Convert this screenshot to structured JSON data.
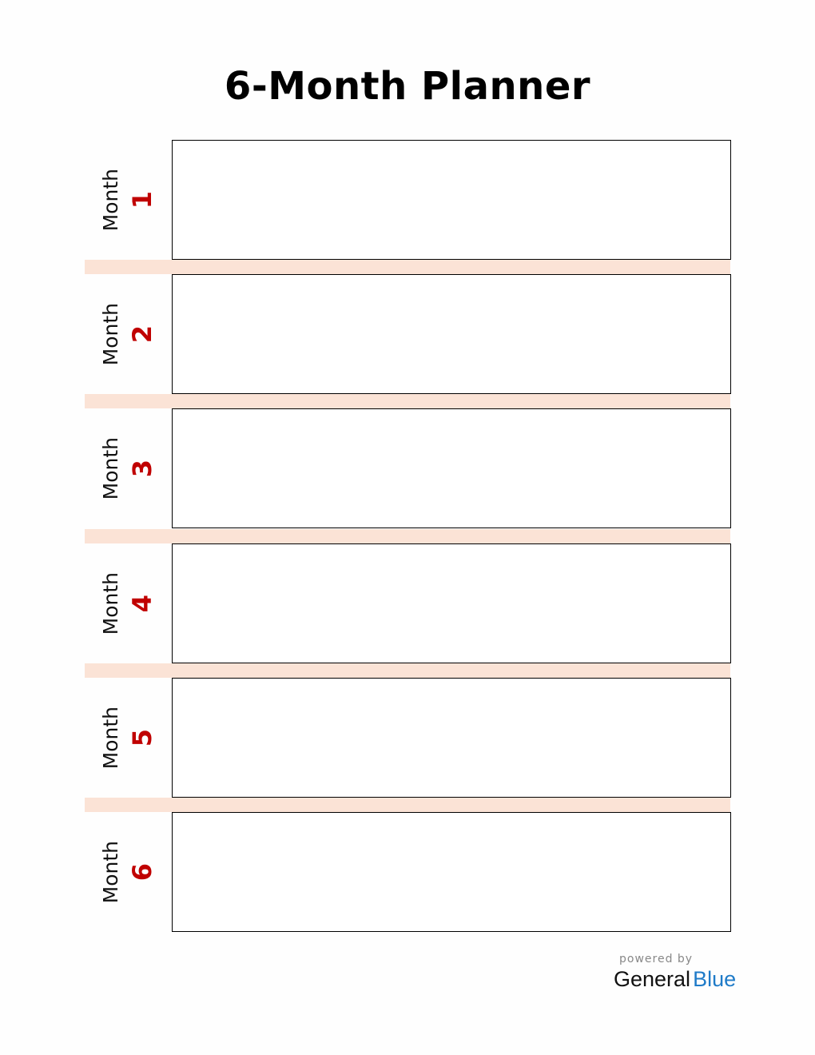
{
  "title": "6-Month Planner",
  "month_label": "Month",
  "months": [
    {
      "number": "1"
    },
    {
      "number": "2"
    },
    {
      "number": "3"
    },
    {
      "number": "4"
    },
    {
      "number": "5"
    },
    {
      "number": "6"
    }
  ],
  "footer": {
    "powered_by": "powered by",
    "brand_general": "General",
    "brand_blue": "Blue"
  },
  "colors": {
    "number": "#c00000",
    "band": "#fbe3d6",
    "brand_blue": "#1f7bc8"
  }
}
